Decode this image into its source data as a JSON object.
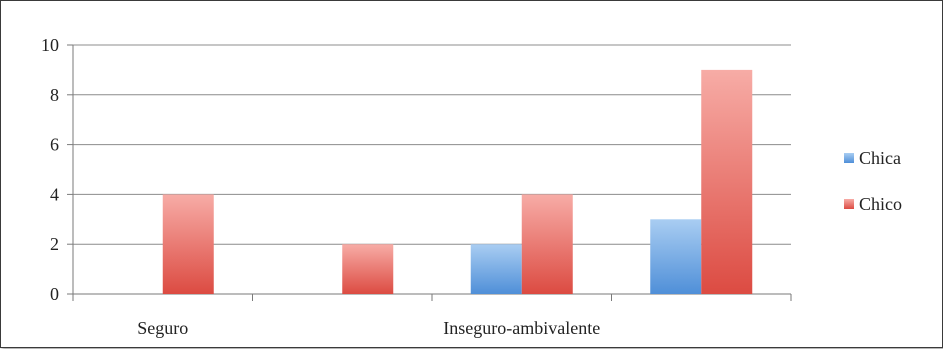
{
  "chart_data": {
    "type": "bar",
    "categories": [
      "Seguro",
      "",
      "Inseguro-ambivalente",
      ""
    ],
    "series": [
      {
        "name": "Chica",
        "values": [
          0,
          0,
          2,
          3
        ],
        "color": "#5b9bd5"
      },
      {
        "name": "Chico",
        "values": [
          4,
          2,
          4,
          9
        ],
        "color": "#e05a52"
      }
    ],
    "ylim": [
      0,
      10
    ],
    "yticks": [
      0,
      2,
      4,
      6,
      8,
      10
    ],
    "xlabel": "",
    "ylabel": "",
    "title": "",
    "grid": true,
    "legend_position": "right"
  }
}
